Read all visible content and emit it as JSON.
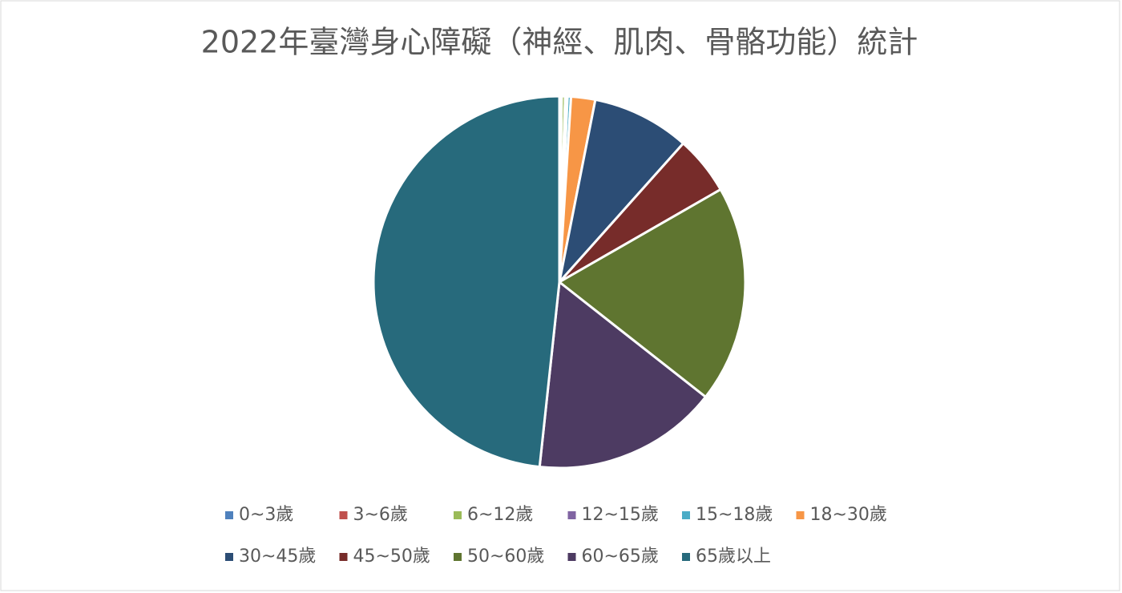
{
  "chart_data": {
    "type": "pie",
    "title": "2022年臺灣身心障礙（神經、肌肉、骨骼功能）統計",
    "categories": [
      "0~3歲",
      "3~6歲",
      "6~12歲",
      "12~15歲",
      "15~18歲",
      "18~30歲",
      "30~45歲",
      "45~50歲",
      "50~60歲",
      "60~65歲",
      "65歲以上"
    ],
    "values": [
      0.1,
      0.1,
      0.3,
      0.2,
      0.3,
      2.1,
      8.5,
      5.1,
      18.9,
      16.1,
      48.3
    ],
    "colors": [
      "#4f81bd",
      "#c0504d",
      "#9bbb59",
      "#8064a2",
      "#4bacc6",
      "#f79646",
      "#2c4d75",
      "#772c2a",
      "#5f7530",
      "#4d3b62",
      "#276a7c"
    ],
    "legend": "bottom"
  }
}
